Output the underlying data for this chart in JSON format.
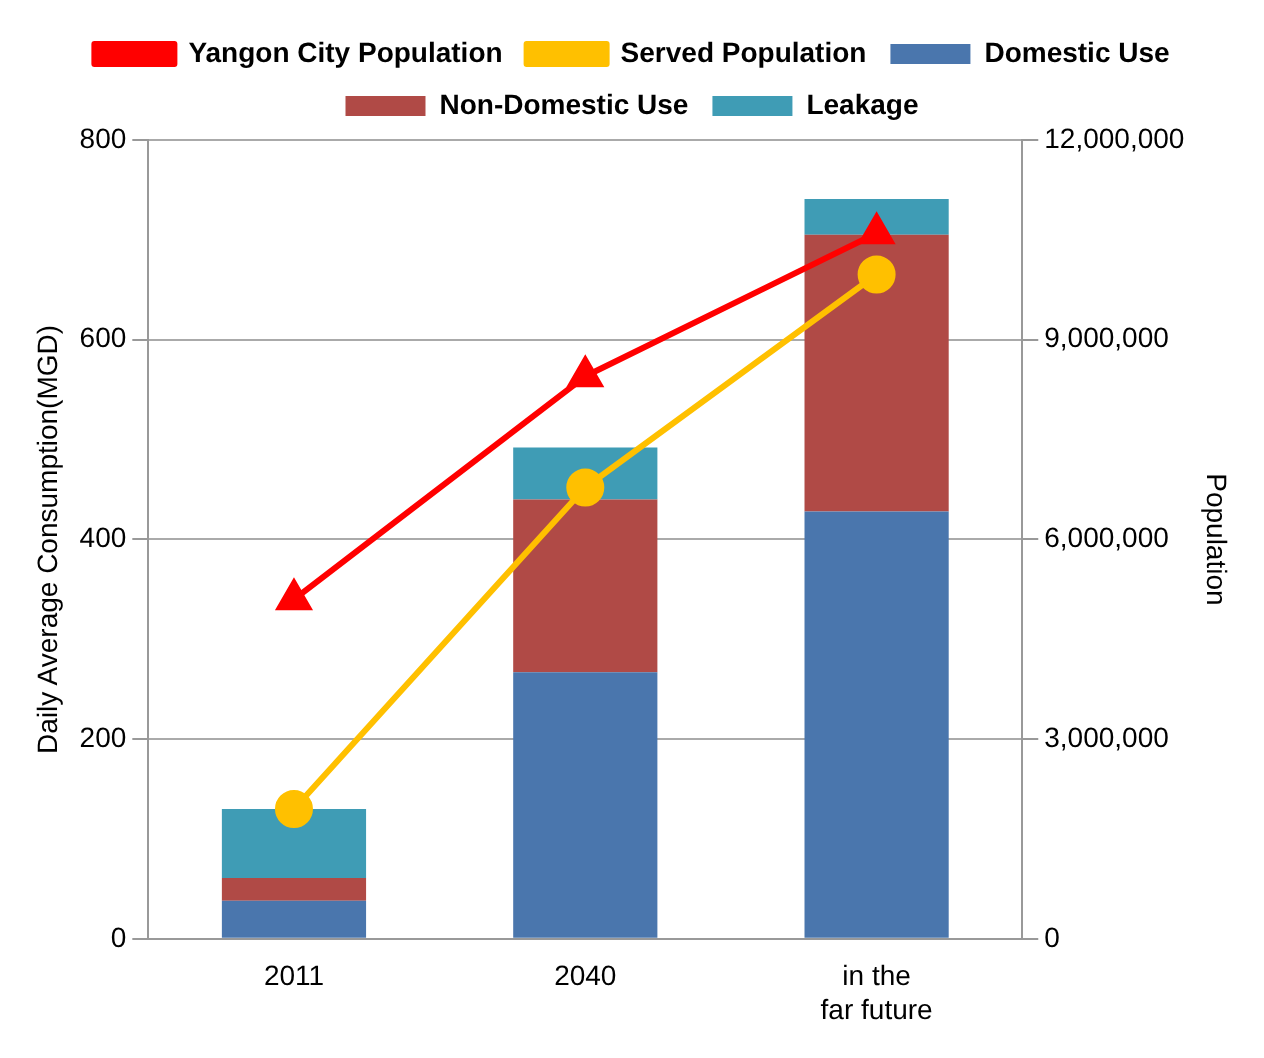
{
  "chart_data": {
    "type": "bar",
    "stacked": true,
    "categories": [
      "2011",
      "2040",
      "in the far future"
    ],
    "ylabel": "Daily Average Consumption(MGD)",
    "y2label": "Population",
    "ylim": [
      0,
      800
    ],
    "yticks": [
      0,
      200,
      400,
      600,
      800
    ],
    "y2lim": [
      0,
      12000000
    ],
    "y2ticks": [
      {
        "value": 0,
        "label": "0"
      },
      {
        "value": 3000000,
        "label": "3,000,000"
      },
      {
        "value": 6000000,
        "label": "6,000,000"
      },
      {
        "value": 9000000,
        "label": "9,000,000"
      },
      {
        "value": 12000000,
        "label": "12,000,000"
      }
    ],
    "grid": "y",
    "legend": "top",
    "series": [
      {
        "name": "Domestic Use",
        "color": "#4a76ad",
        "values": [
          38,
          267,
          428
        ]
      },
      {
        "name": "Non-Domestic Use",
        "color": "#b04a46",
        "values": [
          23,
          173,
          277
        ]
      },
      {
        "name": "Leakage",
        "color": "#3f9cb5",
        "values": [
          69,
          52,
          36
        ]
      },
      {
        "name": "Yangon City Population",
        "type": "line",
        "axis": "y2",
        "color": "#ff0000",
        "marker": "triangle",
        "values": [
          5100000,
          8450000,
          10600000
        ]
      },
      {
        "name": "Served Population",
        "type": "line",
        "axis": "y2",
        "color": "#ffc000",
        "marker": "circle",
        "values": [
          1950000,
          6780000,
          9980000
        ]
      }
    ]
  }
}
